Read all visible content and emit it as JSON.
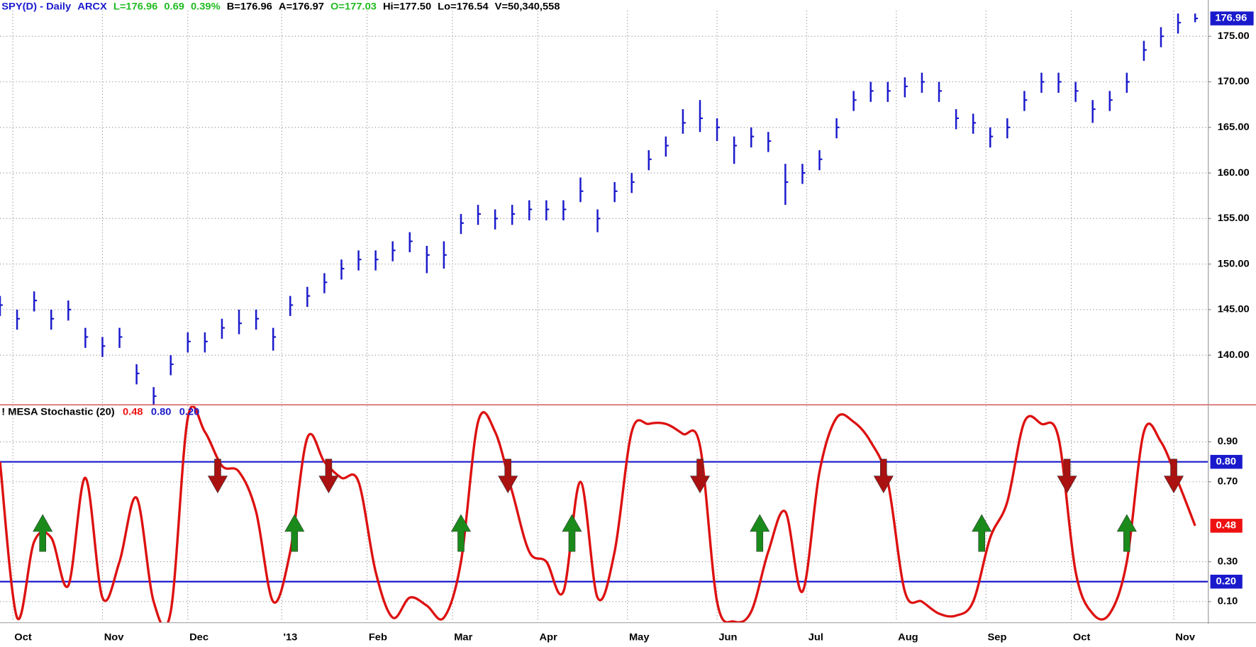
{
  "chart_data": [
    {
      "type": "ohlc-bar",
      "header": [
        {
          "text": "SPY(D) - Daily",
          "color": "#1a1acc"
        },
        {
          "text": "ARCX",
          "color": "#1a1acc"
        },
        {
          "text": "L=176.96",
          "color": "#22bb22"
        },
        {
          "text": "0.69",
          "color": "#22bb22"
        },
        {
          "text": "0.39%",
          "color": "#22bb22"
        },
        {
          "text": "B=176.96",
          "color": "#000000"
        },
        {
          "text": "A=176.97",
          "color": "#000000"
        },
        {
          "text": "O=177.03",
          "color": "#22bb22"
        },
        {
          "text": "Hi=177.50",
          "color": "#000000"
        },
        {
          "text": "Lo=176.54",
          "color": "#000000"
        },
        {
          "text": "V=50,340,558",
          "color": "#000000"
        }
      ],
      "color": "#1a1acc",
      "x": [
        0,
        4,
        8,
        12,
        16,
        20,
        24,
        28,
        32,
        36,
        40,
        44,
        48,
        52,
        56,
        60,
        64,
        68,
        72,
        76,
        80,
        84,
        88,
        92,
        96,
        100,
        104,
        108,
        112,
        116,
        120,
        124,
        128,
        132,
        136,
        140,
        144,
        148,
        152,
        156,
        160,
        164,
        168,
        172,
        176,
        180,
        184,
        188,
        192,
        196,
        200,
        204,
        208,
        212,
        216,
        220,
        224,
        228,
        232,
        236,
        240,
        244,
        248,
        252,
        256,
        260,
        264,
        268,
        272,
        276,
        280
      ],
      "high": [
        146.5,
        145,
        147,
        145,
        146,
        143,
        142,
        143,
        139,
        136.5,
        140,
        142.5,
        142.5,
        144,
        145,
        145,
        143,
        146.5,
        147.5,
        149,
        150.5,
        151.5,
        151.5,
        152.5,
        153.5,
        152,
        152.5,
        155.5,
        156.5,
        156,
        156.5,
        157,
        157,
        157,
        159.5,
        156,
        159,
        160,
        162.5,
        164,
        167,
        168,
        166,
        164,
        165,
        164.5,
        161,
        161,
        162.5,
        166,
        169,
        170,
        170,
        170.5,
        171,
        170,
        167,
        166.5,
        165,
        166,
        169,
        171,
        171,
        170,
        168,
        169,
        171,
        174.5,
        176,
        177.5,
        177.5
      ],
      "low": [
        144.3,
        142.8,
        144.8,
        142.8,
        143.8,
        140.8,
        139.8,
        140.8,
        136.8,
        134.3,
        137.8,
        140.3,
        140.3,
        141.8,
        142.3,
        142.8,
        140.5,
        144.3,
        145.3,
        146.8,
        148.3,
        149.3,
        149.3,
        150.3,
        151.3,
        149,
        149.5,
        153.3,
        154.3,
        153.8,
        154.3,
        154.8,
        154.8,
        154.8,
        156.8,
        153.5,
        156.8,
        157.8,
        160.3,
        161.8,
        164.3,
        164.5,
        163.5,
        161,
        162.8,
        162.3,
        156.5,
        158.8,
        160.3,
        163.8,
        166.8,
        167.8,
        167.8,
        168.3,
        168.8,
        167.8,
        164.8,
        164.3,
        162.8,
        163.8,
        166.8,
        168.8,
        168.8,
        167.8,
        165.5,
        166.8,
        168.8,
        172.3,
        173.8,
        175.3,
        176.54
      ],
      "close": [
        145.5,
        144,
        146,
        144,
        145,
        142,
        141,
        142,
        138,
        135.5,
        139,
        141.5,
        141.5,
        143,
        143.5,
        144,
        142,
        145.5,
        146.5,
        148,
        149.5,
        150.5,
        150.5,
        151.5,
        152.5,
        151,
        151,
        154.5,
        155.5,
        155,
        155.5,
        156,
        156,
        156,
        158,
        155,
        158,
        159,
        161.5,
        163,
        165.5,
        166,
        165,
        163,
        164,
        163.5,
        159,
        160,
        161.5,
        165,
        168,
        169,
        169,
        169.5,
        170,
        169,
        166,
        165.5,
        164,
        165,
        168,
        170,
        170,
        169,
        167,
        168,
        170,
        173.5,
        175,
        176.5,
        176.96
      ],
      "last_label": "176.96",
      "xlim": [
        0,
        283
      ],
      "xticks": [
        3,
        24,
        44,
        66,
        86,
        106,
        126,
        147,
        168,
        189,
        210,
        231,
        251,
        275
      ],
      "ylim": [
        134.6,
        177.8
      ],
      "yticks": [
        {
          "value": 140,
          "label": "140.00"
        },
        {
          "value": 145,
          "label": "145.00"
        },
        {
          "value": 150,
          "label": "150.00"
        },
        {
          "value": 155,
          "label": "155.00"
        },
        {
          "value": 160,
          "label": "160.00"
        },
        {
          "value": 165,
          "label": "165.00"
        },
        {
          "value": 170,
          "label": "170.00"
        },
        {
          "value": 175,
          "label": "175.00"
        }
      ],
      "grid": true
    },
    {
      "type": "line",
      "title": "! MESA Stochastic (20)",
      "header_values": [
        {
          "text": "0.48",
          "color": "#ee1111"
        },
        {
          "text": "0.80",
          "color": "#1a1acc"
        },
        {
          "text": "0.20",
          "color": "#1a1acc"
        }
      ],
      "x": [
        0,
        4,
        8,
        12,
        16,
        20,
        24,
        28,
        32,
        36,
        40,
        44,
        48,
        52,
        56,
        60,
        64,
        68,
        72,
        76,
        80,
        84,
        88,
        92,
        96,
        100,
        104,
        108,
        112,
        116,
        120,
        124,
        128,
        132,
        136,
        140,
        144,
        148,
        152,
        156,
        160,
        164,
        168,
        172,
        176,
        180,
        184,
        188,
        192,
        196,
        200,
        204,
        208,
        212,
        216,
        220,
        224,
        228,
        232,
        236,
        240,
        244,
        248,
        252,
        256,
        260,
        264,
        268,
        272,
        276,
        280
      ],
      "series": [
        {
          "name": "MESA Stochastic",
          "color": "#dd1111",
          "values": [
            0.8,
            0.02,
            0.4,
            0.42,
            0.18,
            0.72,
            0.12,
            0.3,
            0.62,
            0.1,
            0.05,
            1.02,
            0.95,
            0.78,
            0.75,
            0.55,
            0.1,
            0.35,
            0.92,
            0.8,
            0.72,
            0.7,
            0.25,
            0.02,
            0.12,
            0.08,
            0.02,
            0.3,
            1.0,
            0.95,
            0.65,
            0.35,
            0.3,
            0.15,
            0.7,
            0.12,
            0.35,
            0.95,
            0.99,
            0.99,
            0.94,
            0.88,
            0.1,
            0.0,
            0.05,
            0.35,
            0.55,
            0.15,
            0.75,
            1.02,
            1.0,
            0.9,
            0.7,
            0.15,
            0.1,
            0.04,
            0.03,
            0.1,
            0.42,
            0.6,
            1.0,
            0.99,
            0.92,
            0.25,
            0.04,
            0.04,
            0.3,
            0.95,
            0.9,
            0.7,
            0.48
          ]
        }
      ],
      "last_label": "0.48",
      "hlines": [
        {
          "value": 0.8,
          "label": "0.80",
          "color": "#1a1acc"
        },
        {
          "value": 0.2,
          "label": "0.20",
          "color": "#1a1acc"
        }
      ],
      "buy_signals": [
        10,
        69,
        108,
        134,
        178,
        230,
        264
      ],
      "sell_signals": [
        51,
        77,
        119,
        164,
        207,
        250,
        275
      ],
      "buy_color": "#1a8a1a",
      "sell_color": "#aa1111",
      "xlim": [
        0,
        283
      ],
      "xticks": [
        {
          "value": 3,
          "label": "Oct"
        },
        {
          "value": 24,
          "label": "Nov"
        },
        {
          "value": 44,
          "label": "Dec"
        },
        {
          "value": 66,
          "label": "'13"
        },
        {
          "value": 86,
          "label": "Feb"
        },
        {
          "value": 106,
          "label": "Mar"
        },
        {
          "value": 126,
          "label": "Apr"
        },
        {
          "value": 147,
          "label": "May"
        },
        {
          "value": 168,
          "label": "Jun"
        },
        {
          "value": 189,
          "label": "Jul"
        },
        {
          "value": 210,
          "label": "Aug"
        },
        {
          "value": 231,
          "label": "Sep"
        },
        {
          "value": 251,
          "label": "Oct"
        },
        {
          "value": 275,
          "label": "Nov"
        }
      ],
      "ylim": [
        0,
        1.08
      ],
      "yticks": [
        {
          "value": 0.1,
          "label": "0.10"
        },
        {
          "value": 0.3,
          "label": "0.30"
        },
        {
          "value": 0.7,
          "label": "0.70"
        },
        {
          "value": 0.9,
          "label": "0.90"
        }
      ],
      "grid": true
    }
  ]
}
